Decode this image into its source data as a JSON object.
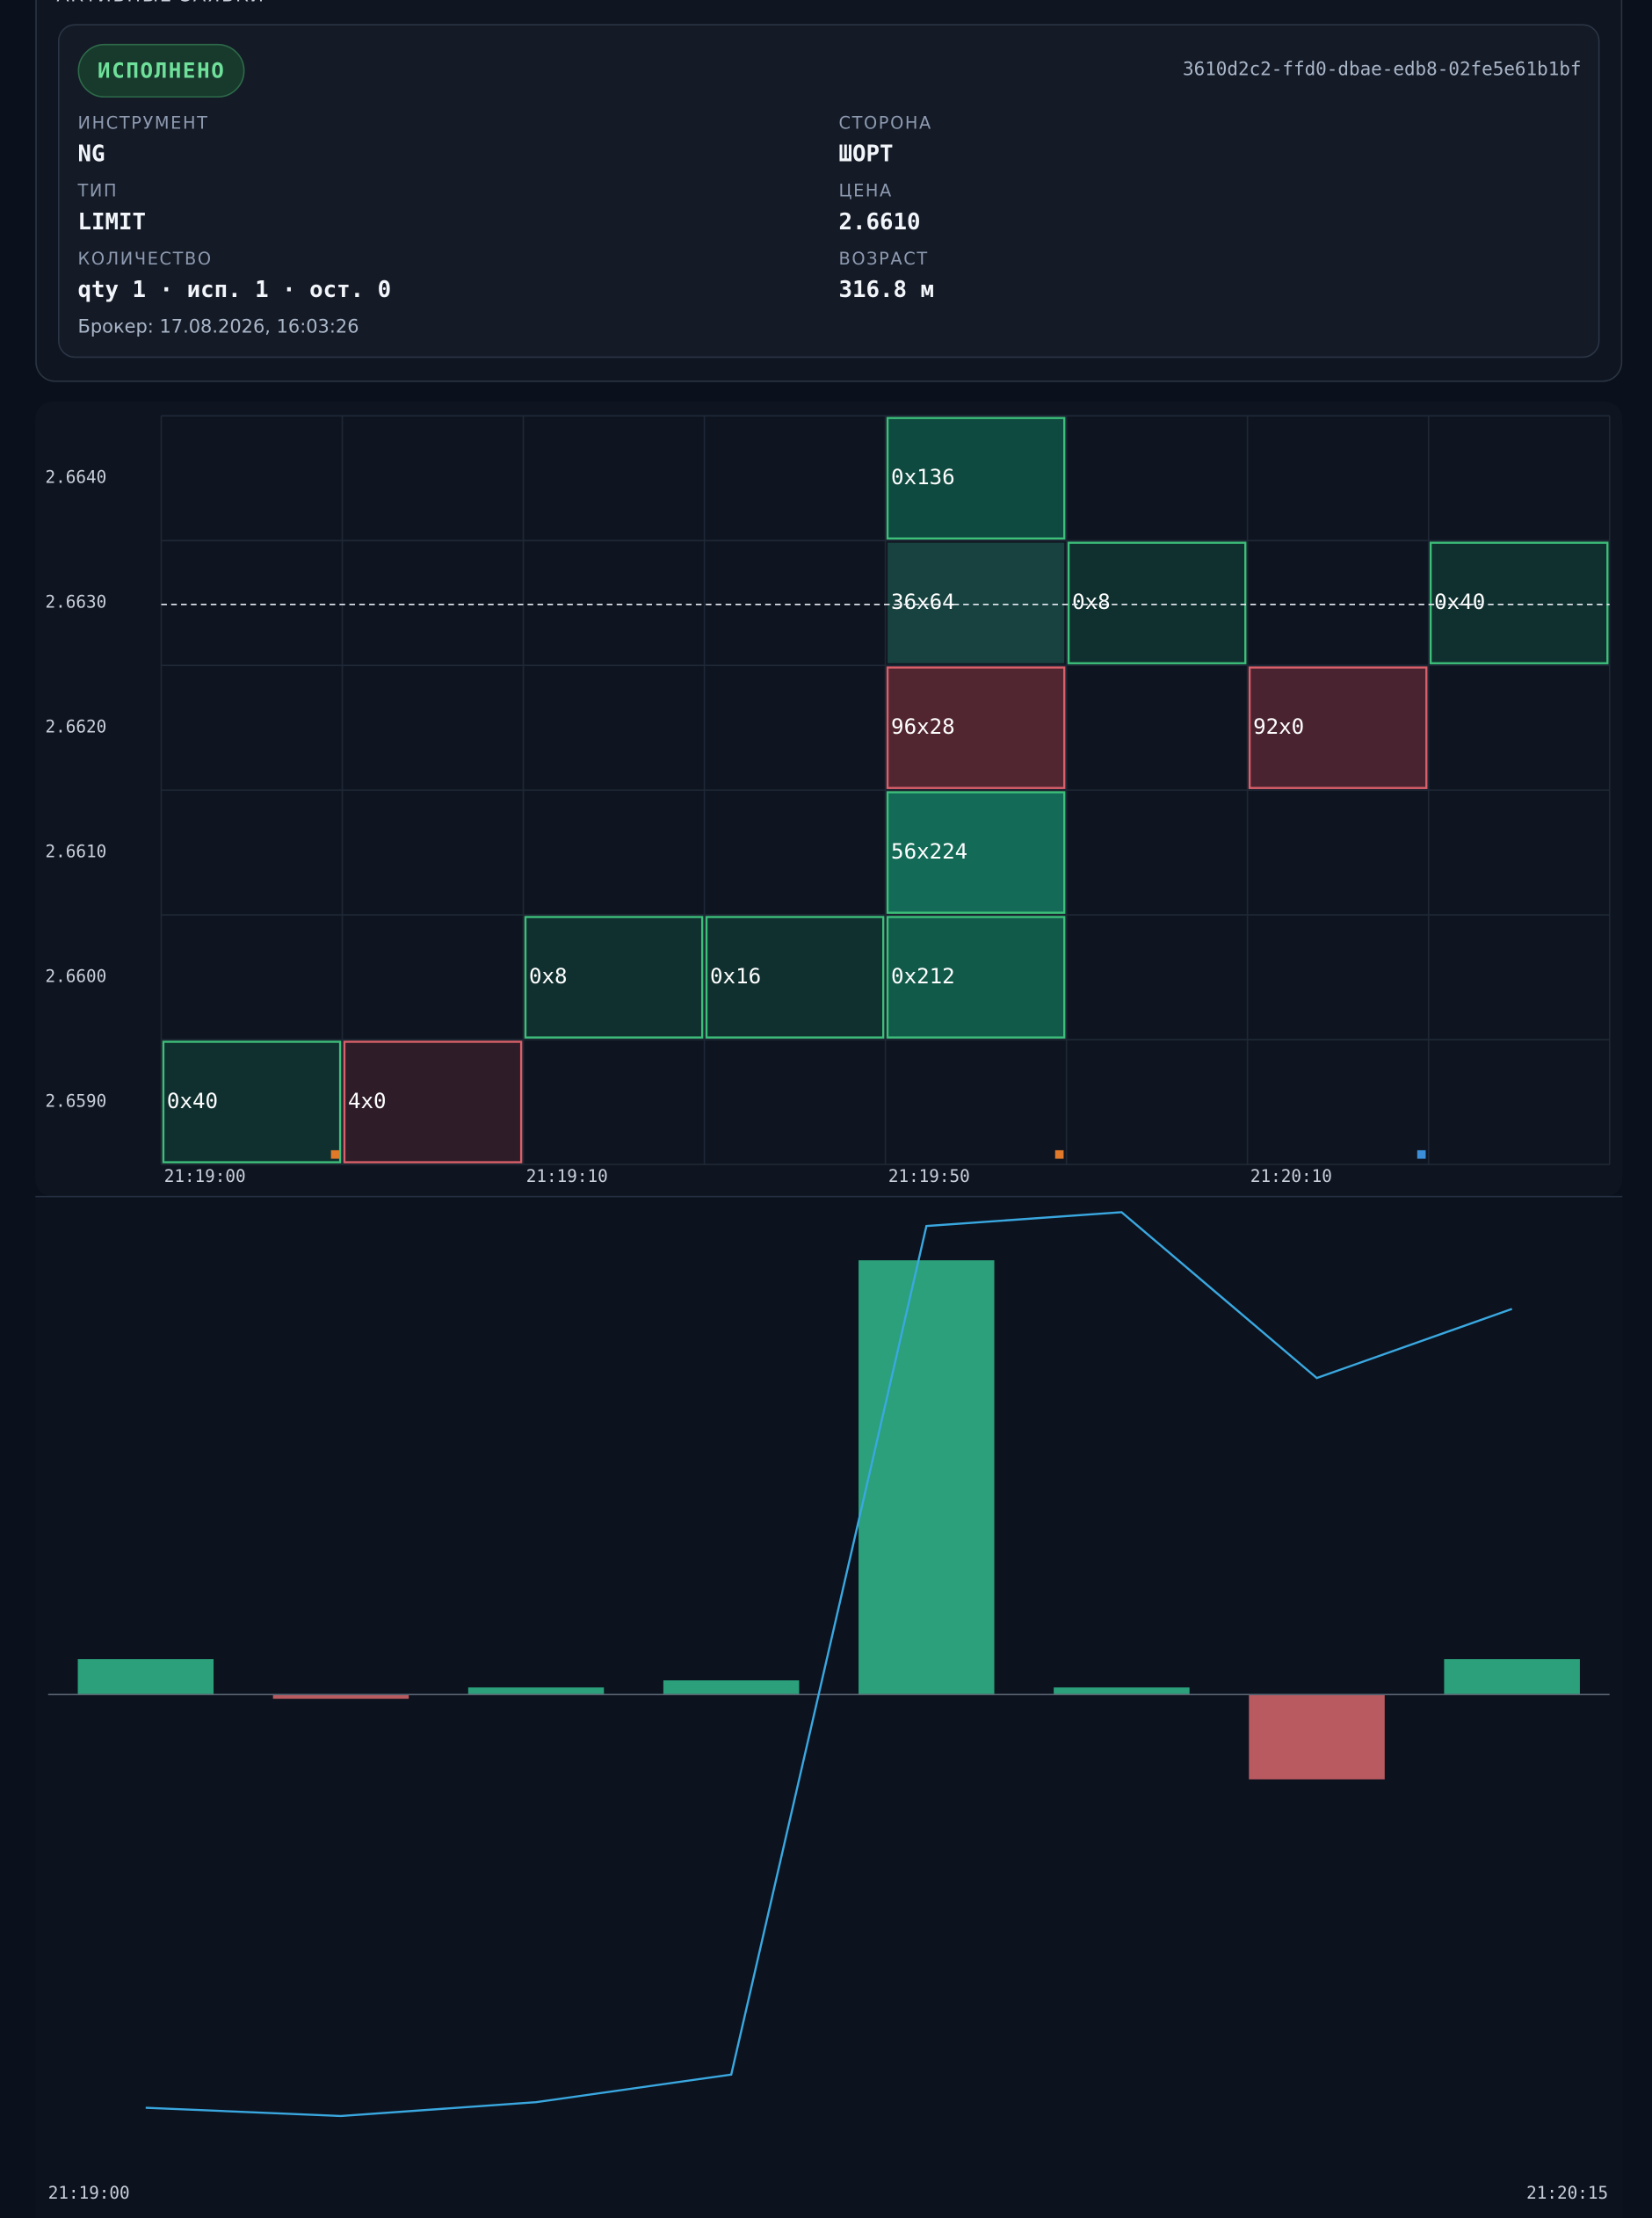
{
  "section_title": "АКТИВНЫЕ ЗАЯВКИ",
  "order": {
    "status": "ИСПОЛНЕНО",
    "id": "3610d2c2-ffd0-dbae-edb8-02fe5e61b1bf",
    "fields": [
      {
        "label": "ИНСТРУМЕНТ",
        "value": "NG"
      },
      {
        "label": "СТОРОНА",
        "value": "ШОРТ"
      },
      {
        "label": "ТИП",
        "value": "LIMIT"
      },
      {
        "label": "ЦЕНА",
        "value": "2.6610"
      },
      {
        "label": "КОЛИЧЕСТВО",
        "value": "qty 1 · исп. 1 · ост. 0"
      },
      {
        "label": "ВОЗРАСТ",
        "value": "316.8 м"
      }
    ],
    "broker": "Брокер: 17.08.2026, 16:03:26"
  },
  "footprint": {
    "price_levels": [
      {
        "value": 2.664,
        "label": "2.6640"
      },
      {
        "value": 2.663,
        "label": "2.6630"
      },
      {
        "value": 2.662,
        "label": "2.6620"
      },
      {
        "value": 2.661,
        "label": "2.6610"
      },
      {
        "value": 2.66,
        "label": "2.6600"
      },
      {
        "value": 2.659,
        "label": "2.6590"
      }
    ],
    "current_price": 2.663,
    "x_labels": [
      "21:19:00",
      null,
      "21:19:10",
      null,
      "21:19:50",
      null,
      "21:20:10",
      null
    ],
    "markers": [
      "#e07a2a",
      null,
      null,
      null,
      "#e07a2a",
      null,
      "#3a8fd8",
      null
    ],
    "columns": [
      [
        {
          "price": 2.659,
          "text": "0x40",
          "fill": "#10302f",
          "stroke": "#3dbf7a"
        }
      ],
      [
        {
          "price": 2.659,
          "text": "4x0",
          "fill": "#2e1d28",
          "stroke": "#d9606a"
        }
      ],
      [
        {
          "price": 2.66,
          "text": "0x8",
          "fill": "#10302f",
          "stroke": "#3dbf7a"
        }
      ],
      [
        {
          "price": 2.66,
          "text": "0x16",
          "fill": "#10302f",
          "stroke": "#3dbf7a"
        }
      ],
      [
        {
          "price": 2.664,
          "text": "0x136",
          "fill": "#0f4a40",
          "stroke": "#3dbf7a"
        },
        {
          "price": 2.663,
          "text": "36x64",
          "fill": "#17423f"
        },
        {
          "price": 2.662,
          "text": "96x28",
          "fill": "#522631",
          "stroke": "#d9606a"
        },
        {
          "price": 2.661,
          "text": "56x224",
          "fill": "#136b57",
          "stroke": "#3dbf7a"
        },
        {
          "price": 2.66,
          "text": "0x212",
          "fill": "#115a4a",
          "stroke": "#3dbf7a"
        }
      ],
      [
        {
          "price": 2.663,
          "text": "0x8",
          "fill": "#10302f",
          "stroke": "#3dbf7a"
        }
      ],
      [
        {
          "price": 2.662,
          "text": "92x0",
          "fill": "#4a2331",
          "stroke": "#d9606a"
        }
      ],
      [
        {
          "price": 2.663,
          "text": "0x40",
          "fill": "#10302f",
          "stroke": "#3dbf7a"
        }
      ]
    ]
  },
  "delta": {
    "type": "bar",
    "x_start_label": "21:19:00",
    "x_end_label": "21:20:15",
    "values": [
      25,
      -3,
      5,
      10,
      307,
      5,
      -60,
      25
    ],
    "ylim": [
      -343,
      343
    ],
    "positive_color": "#2ba07a",
    "negative_color": "#b85a60",
    "cumulative": [
      25,
      22,
      27,
      37,
      344,
      349,
      289,
      314
    ],
    "y2lim": [
      22,
      349
    ],
    "line_color": "#3aa8e0"
  }
}
